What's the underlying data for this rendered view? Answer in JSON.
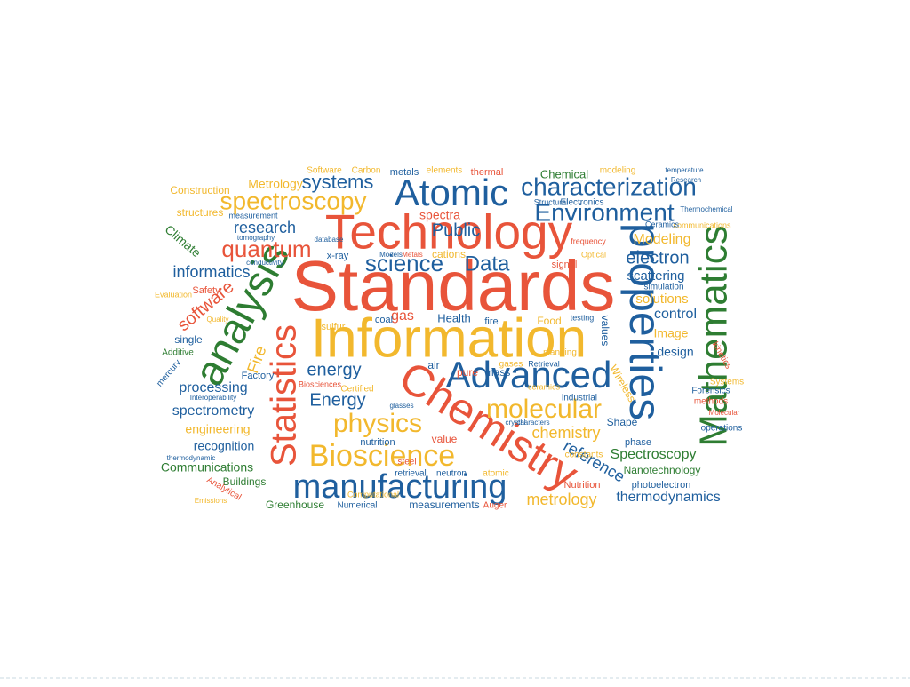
{
  "word_cloud": {
    "words": [
      "Standards",
      "Information",
      "Technology",
      "Atomic",
      "properties",
      "Mathematics",
      "analysis",
      "Statistics",
      "Chemistry",
      "Advanced",
      "manufacturing",
      "Bioscience",
      "physics",
      "molecular",
      "characterization",
      "Environment",
      "spectroscopy",
      "quantum",
      "science",
      "Data",
      "systems",
      "Public",
      "research",
      "informatics",
      "software",
      "electron",
      "Modeling",
      "scattering",
      "solutions",
      "control",
      "Image",
      "design",
      "energy",
      "Energy",
      "processing",
      "spectrometry",
      "engineering",
      "recognition",
      "Communications",
      "Buildings",
      "Greenhouse",
      "measurements",
      "metrology",
      "thermodynamics",
      "Nanotechnology",
      "Spectroscopy",
      "chemistry",
      "reference",
      "Metrology",
      "Construction",
      "structures",
      "Climate",
      "Fire",
      "Factory",
      "Additive",
      "single",
      "Safety",
      "gas",
      "Health",
      "Food",
      "air",
      "pure",
      "mass",
      "value",
      "nutrition",
      "Shape",
      "phase",
      "Nutrition",
      "photoelectron",
      "Chemical",
      "Software",
      "Carbon",
      "metals",
      "thermal",
      "modeling",
      "spectra",
      "x-ray",
      "cations",
      "signal",
      "values",
      "Retrieval",
      "industrial",
      "Wireless",
      "methods",
      "operations",
      "Forensics",
      "kinetics",
      "Systems",
      "simulation",
      "planning",
      "steel",
      "atomic",
      "Auger",
      "Numerical",
      "neutron",
      "retrieval",
      "constants",
      "Electronics",
      "Structural",
      "sulfur",
      "coal",
      "testing",
      "mercury",
      "Certified",
      "Biosciences",
      "gases",
      "fire",
      "Optical",
      "frequency",
      "elements",
      "communications",
      "Ceramics",
      "temperature",
      "Thermochemical",
      "Research",
      "measurement",
      "database",
      "tomography",
      "conductivity",
      "Computational",
      "Emissions",
      "Analytical",
      "Evaluation",
      "Quality",
      "Metals",
      "Models",
      "ceramics",
      "Molecular",
      "Interoperability",
      "thermodynamic",
      "characters",
      "glasses",
      "crystal"
    ]
  }
}
